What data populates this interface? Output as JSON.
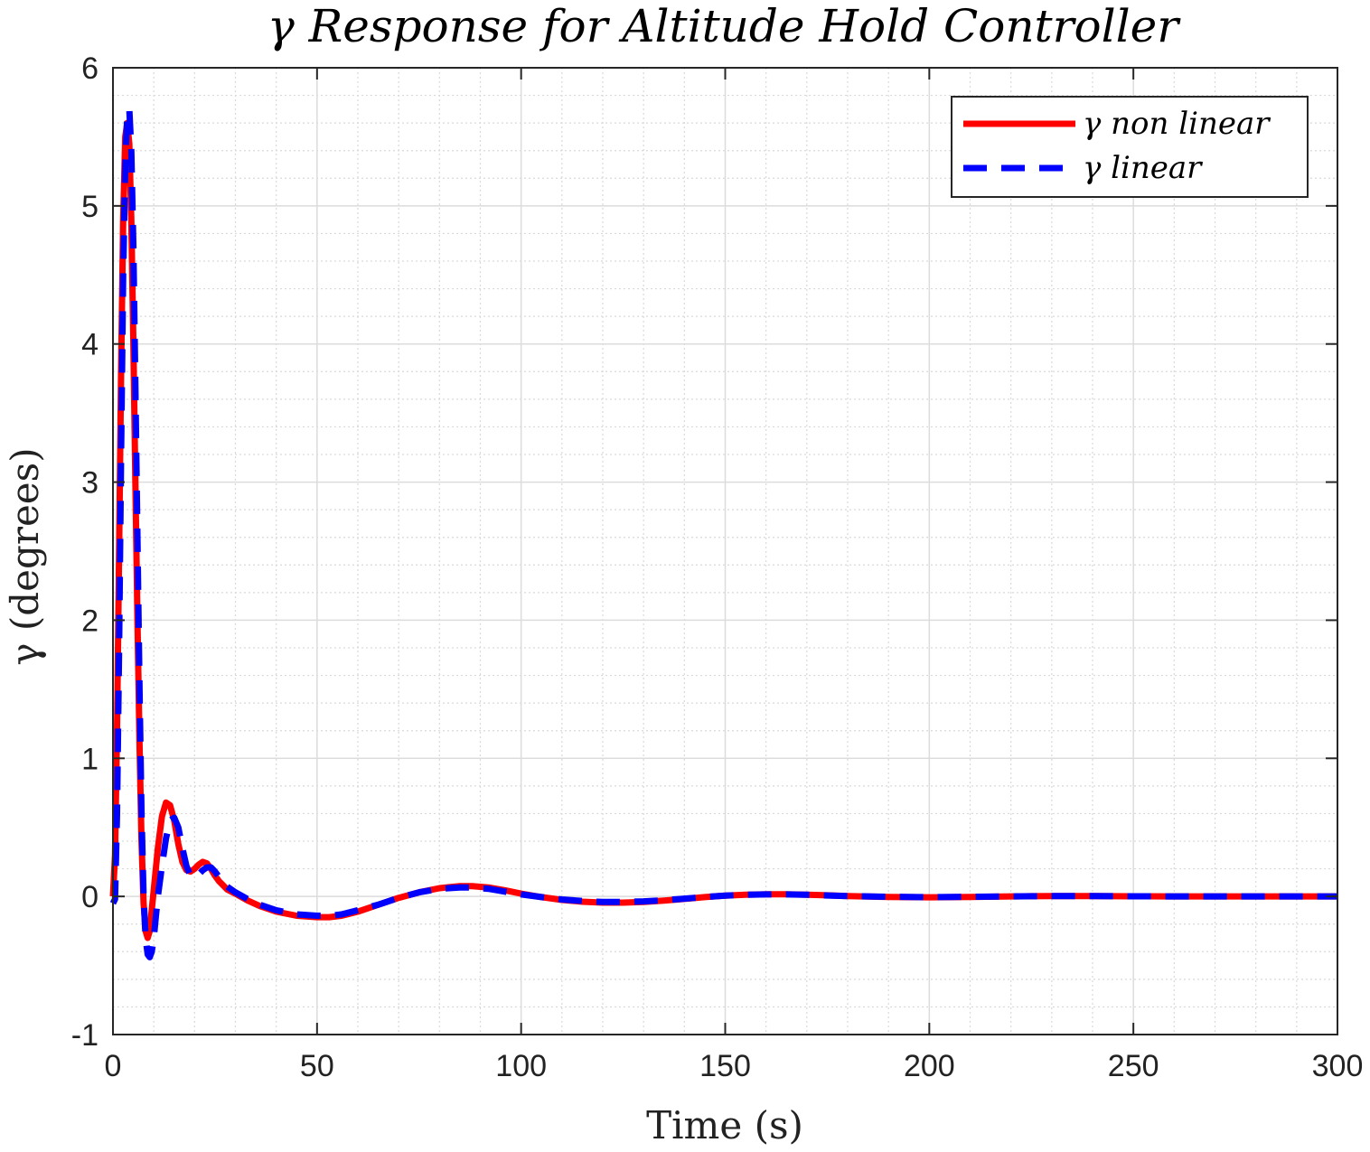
{
  "chart_data": {
    "type": "line",
    "title": "γ Response for Altitude Hold Controller",
    "xlabel": "Time (s)",
    "ylabel": "γ (degrees)",
    "xlim": [
      0,
      300
    ],
    "ylim": [
      -1,
      6
    ],
    "xticks": [
      0,
      50,
      100,
      150,
      200,
      250,
      300
    ],
    "yticks": [
      -1,
      0,
      1,
      2,
      3,
      4,
      5,
      6
    ],
    "xtick_labels": [
      "0",
      "50",
      "100",
      "150",
      "200",
      "250",
      "300"
    ],
    "ytick_labels": [
      "-1",
      "0",
      "1",
      "2",
      "3",
      "4",
      "5",
      "6"
    ],
    "grid": true,
    "minor_grid": true,
    "legend_position": "top-right",
    "series": [
      {
        "name": "γ non linear",
        "color": "#ff0000",
        "style": "solid",
        "x": [
          0,
          0.5,
          1,
          1.5,
          2,
          2.5,
          3,
          3.5,
          4,
          4.5,
          5,
          5.5,
          6,
          6.5,
          7,
          7.5,
          8,
          8.5,
          9,
          9.5,
          10,
          11,
          12,
          13,
          14,
          15,
          16,
          17,
          18,
          19,
          20,
          21,
          22,
          23,
          24,
          25,
          26,
          28,
          30,
          33,
          36,
          40,
          45,
          50,
          53,
          56,
          60,
          65,
          70,
          75,
          80,
          85,
          88,
          92,
          96,
          100,
          105,
          110,
          115,
          120,
          125,
          130,
          135,
          140,
          145,
          150,
          155,
          160,
          165,
          170,
          175,
          180,
          190,
          200,
          210,
          220,
          230,
          240,
          250,
          260,
          280,
          300
        ],
        "y": [
          0,
          0.3,
          1.2,
          2.5,
          3.8,
          4.9,
          5.5,
          5.6,
          5.45,
          4.9,
          4.0,
          3.0,
          2.0,
          1.1,
          0.4,
          -0.05,
          -0.25,
          -0.3,
          -0.25,
          -0.1,
          0.05,
          0.35,
          0.58,
          0.68,
          0.66,
          0.55,
          0.38,
          0.25,
          0.19,
          0.18,
          0.2,
          0.23,
          0.25,
          0.24,
          0.2,
          0.15,
          0.11,
          0.05,
          0.02,
          -0.03,
          -0.07,
          -0.11,
          -0.14,
          -0.15,
          -0.15,
          -0.14,
          -0.11,
          -0.06,
          -0.01,
          0.03,
          0.06,
          0.075,
          0.075,
          0.065,
          0.045,
          0.02,
          -0.005,
          -0.025,
          -0.038,
          -0.045,
          -0.045,
          -0.04,
          -0.03,
          -0.018,
          -0.005,
          0.006,
          0.013,
          0.016,
          0.016,
          0.013,
          0.008,
          0.003,
          -0.004,
          -0.006,
          -0.004,
          0.0,
          0.003,
          0.002,
          0.001,
          0.0,
          0.0,
          0.0
        ]
      },
      {
        "name": "γ linear",
        "color": "#0000ff",
        "style": "dashed",
        "x": [
          0,
          0.5,
          1,
          1.5,
          2,
          2.5,
          3,
          3.5,
          4,
          4.5,
          5,
          5.5,
          6,
          6.5,
          7,
          7.5,
          8,
          8.5,
          9,
          9.5,
          10,
          10.5,
          11,
          12,
          13,
          14,
          15,
          16,
          17,
          18,
          19,
          20,
          21,
          22,
          23,
          24,
          25,
          26,
          28,
          30,
          33,
          36,
          40,
          45,
          50,
          53,
          56,
          60,
          65,
          70,
          75,
          80,
          85,
          88,
          92,
          96,
          100,
          105,
          110,
          115,
          120,
          125,
          130,
          135,
          140,
          145,
          150,
          155,
          160,
          165,
          170,
          175,
          180,
          190,
          200,
          210,
          220,
          230,
          240,
          250,
          260,
          280,
          300
        ],
        "y": [
          -0.05,
          -0.02,
          0.6,
          1.8,
          3.2,
          4.5,
          5.3,
          5.65,
          5.7,
          5.4,
          4.7,
          3.7,
          2.6,
          1.5,
          0.6,
          0.0,
          -0.3,
          -0.42,
          -0.44,
          -0.4,
          -0.3,
          -0.15,
          0.0,
          0.22,
          0.42,
          0.55,
          0.57,
          0.5,
          0.35,
          0.22,
          0.15,
          0.14,
          0.16,
          0.19,
          0.21,
          0.21,
          0.18,
          0.14,
          0.07,
          0.03,
          -0.02,
          -0.06,
          -0.1,
          -0.13,
          -0.14,
          -0.14,
          -0.13,
          -0.1,
          -0.06,
          -0.01,
          0.03,
          0.055,
          0.065,
          0.065,
          0.055,
          0.035,
          0.015,
          -0.005,
          -0.022,
          -0.033,
          -0.04,
          -0.04,
          -0.036,
          -0.027,
          -0.016,
          -0.004,
          0.006,
          0.012,
          0.015,
          0.015,
          0.012,
          0.007,
          0.003,
          -0.003,
          -0.005,
          -0.003,
          0.0,
          0.002,
          0.002,
          0.001,
          0.0,
          0.0,
          0.0
        ]
      }
    ]
  }
}
